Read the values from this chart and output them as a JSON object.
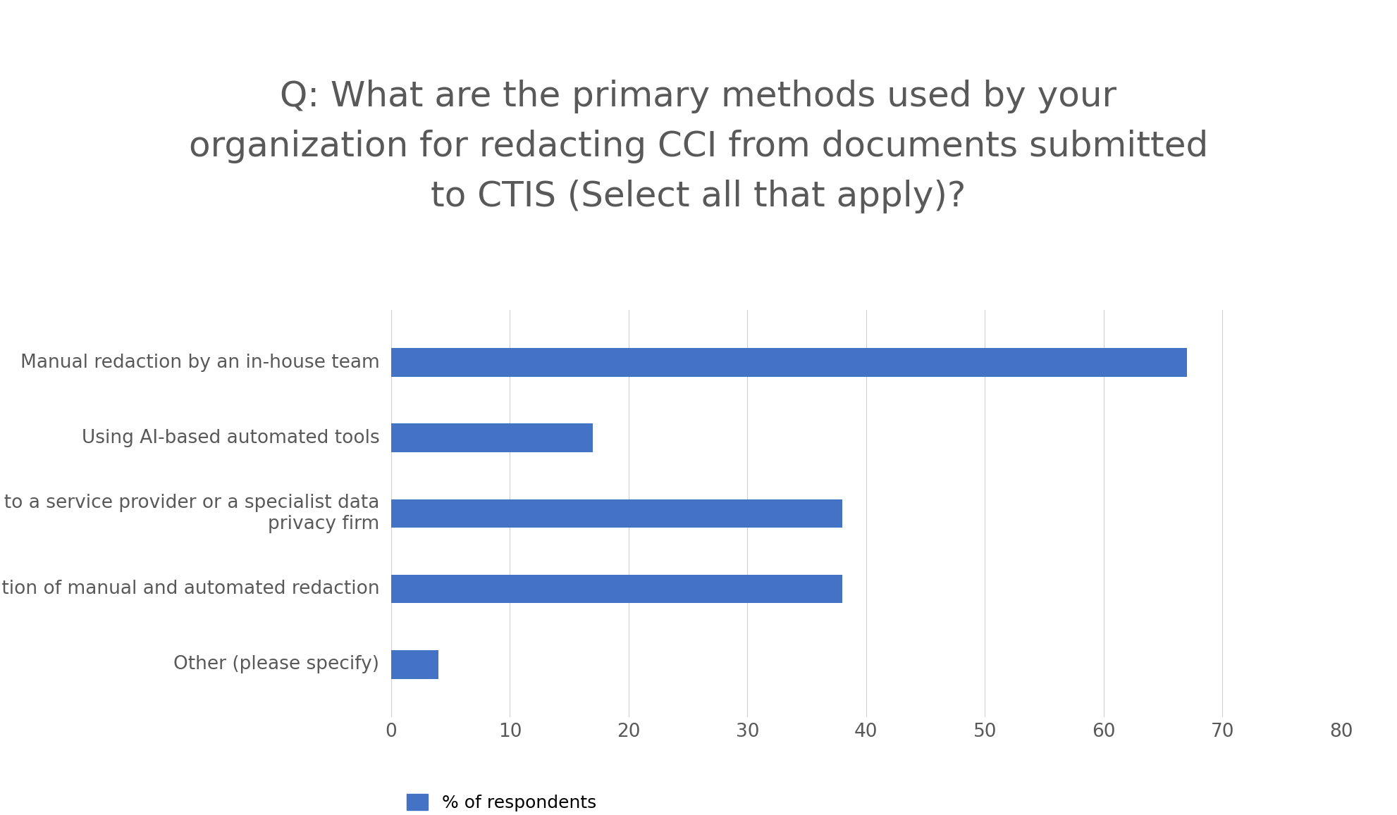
{
  "title": "Q: What are the primary methods used by your\norganization for redacting CCI from documents submitted\nto CTIS (Select all that apply)?",
  "categories": [
    "Manual redaction by an in-house team",
    "Using AI-based automated tools",
    "Outsourcing to a service provider or a specialist data\nprivacy firm",
    "Combination of manual and automated redaction",
    "Other (please specify)"
  ],
  "values": [
    67,
    17,
    38,
    38,
    4
  ],
  "bar_color": "#4472C4",
  "background_color": "#ffffff",
  "xlim": [
    0,
    80
  ],
  "xticks": [
    0,
    10,
    20,
    30,
    40,
    50,
    60,
    70,
    80
  ],
  "legend_label": "% of respondents",
  "title_fontsize": 36,
  "tick_fontsize": 19,
  "label_fontsize": 19,
  "legend_fontsize": 18,
  "title_color": "#595959",
  "label_color": "#595959",
  "bar_height": 0.38
}
